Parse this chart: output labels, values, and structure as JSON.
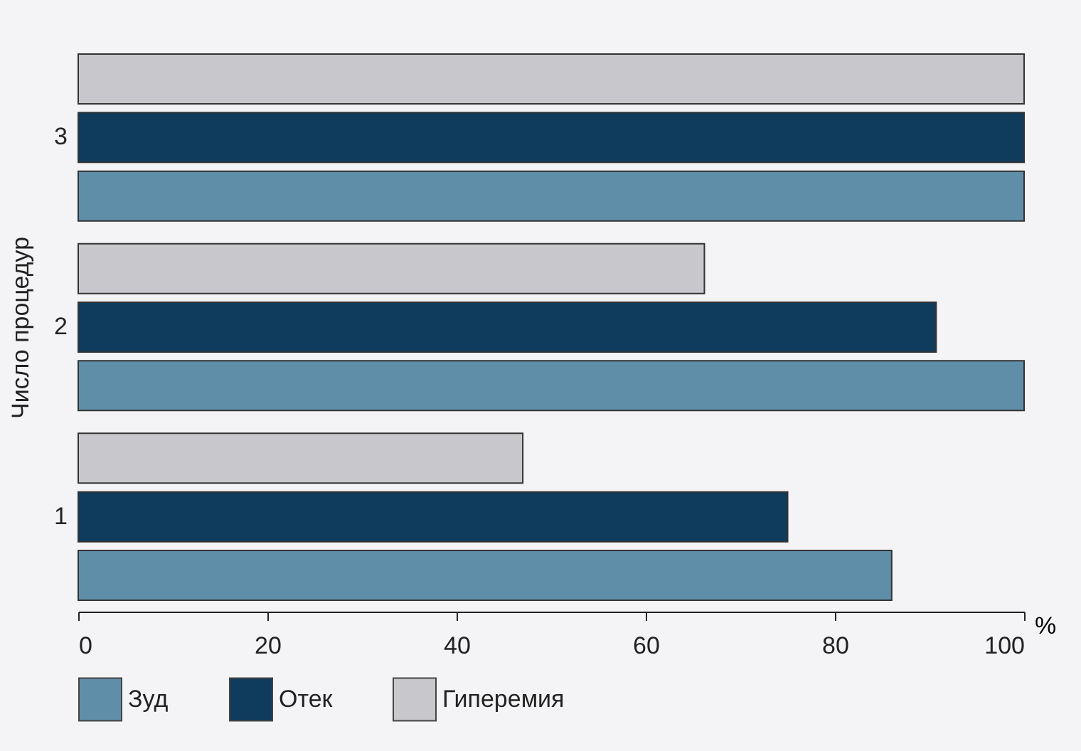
{
  "chart_data": {
    "type": "bar",
    "orientation": "horizontal",
    "xlabel": "%",
    "ylabel": "Число процедур",
    "categories": [
      "3",
      "2",
      "1"
    ],
    "series": [
      {
        "name": "Зуд",
        "color": "#5f8ea8",
        "values": [
          100,
          100,
          86
        ]
      },
      {
        "name": "Отек",
        "color": "#0f3b5c",
        "values": [
          100,
          90.7,
          75
        ]
      },
      {
        "name": "Гиперемия",
        "color": "#c8c8cc",
        "values": [
          100,
          66.2,
          47
        ]
      }
    ],
    "xlim": [
      0,
      100
    ],
    "xticks": [
      0,
      20,
      40,
      60,
      80,
      100
    ],
    "grid": false,
    "legend": "bottom"
  }
}
